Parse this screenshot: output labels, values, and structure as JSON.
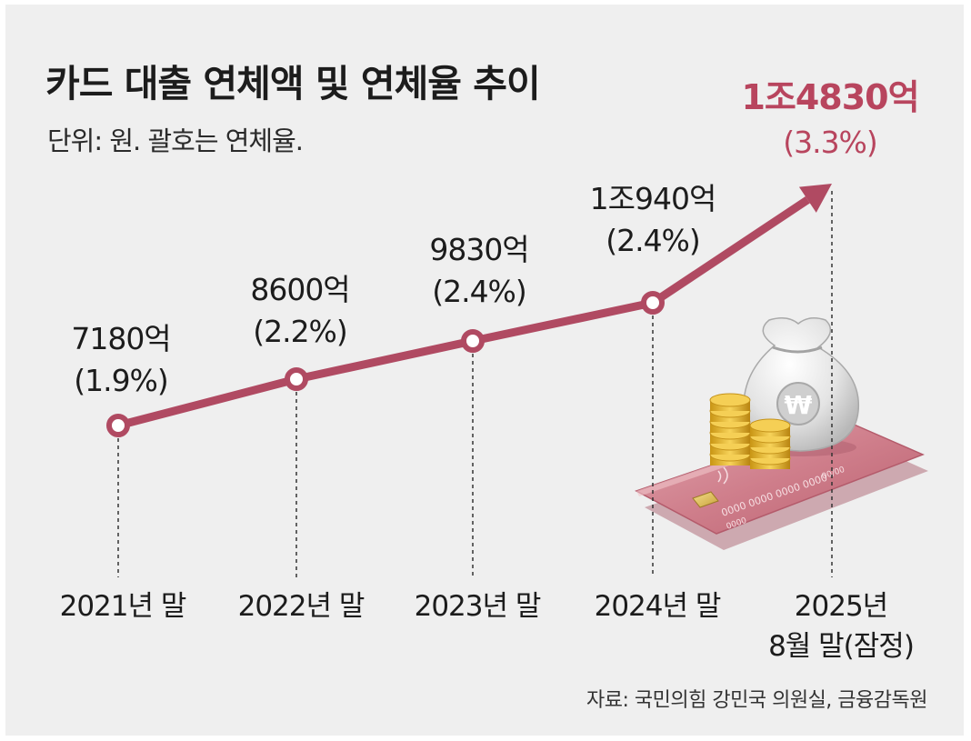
{
  "title": "카드 대출 연체액 및 연체율 추이",
  "subtitle": "단위: 원. 괄호는 연체율.",
  "source": "자료: 국민의힘 강민국 의원실, 금융감독원",
  "colors": {
    "line": "#b04a62",
    "highlight": "#b8455e",
    "text": "#1c1c1c",
    "background": "#efefef"
  },
  "illustration": {
    "description_icon": "money-bag-coins-credit-card-icon",
    "card_text": "0000 0000 0000 0000",
    "card_date": "00/00",
    "card_small": "0000",
    "bag_symbol": "₩"
  },
  "chart_data": {
    "type": "line",
    "title": "카드 대출 연체액 및 연체율 추이",
    "unit": "원",
    "categories": [
      "2021년 말",
      "2022년 말",
      "2023년 말",
      "2024년 말",
      "2025년 8월 말(잠정)"
    ],
    "category_lines": [
      [
        "2021년 말"
      ],
      [
        "2022년 말"
      ],
      [
        "2023년 말"
      ],
      [
        "2024년 말"
      ],
      [
        "2025년",
        "8월 말(잠정)"
      ]
    ],
    "series": [
      {
        "name": "연체액(억 원)",
        "values": [
          7180,
          8600,
          9830,
          10940,
          14830
        ],
        "value_labels": [
          "7180억",
          "8600억",
          "9830억",
          "1조940억",
          "1조4830억"
        ]
      },
      {
        "name": "연체율(%)",
        "values": [
          1.9,
          2.2,
          2.4,
          2.4,
          3.3
        ],
        "value_labels": [
          "(1.9%)",
          "(2.2%)",
          "(2.4%)",
          "(2.4%)",
          "(3.3%)"
        ]
      }
    ],
    "highlight_last": true
  }
}
